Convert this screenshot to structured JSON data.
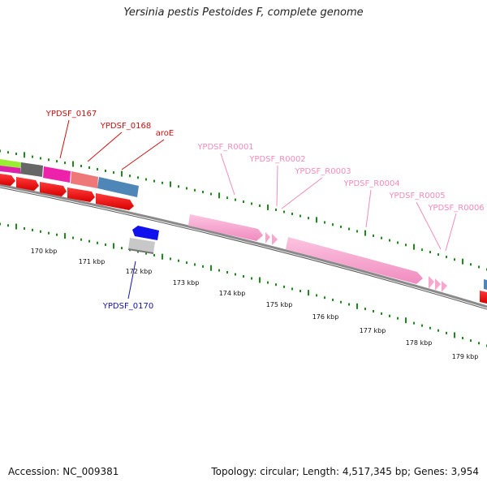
{
  "title": "Yersinia pestis Pestoides F, complete genome",
  "accession": {
    "label": "Accession:",
    "value": "NC_009381"
  },
  "stats": {
    "topology_label": "Topology:",
    "topology": "circular",
    "length_label": "Length:",
    "length": "4,517,345 bp",
    "genes_label": "Genes:",
    "genes": "3,954"
  },
  "colors": {
    "tick": "#1e8a1e",
    "backbone": "#8a8a8a",
    "red_gene": "#ee1111",
    "rna": "#f7a6cd",
    "blue_gene": "#1111ee",
    "blue_label": "#1414b4",
    "red_label": "#cc1111",
    "pink_label": "#f08cbe"
  },
  "scale_labels": [
    "170 kbp",
    "171 kbp",
    "172 kbp",
    "173 kbp",
    "174 kbp",
    "175 kbp",
    "176 kbp",
    "177 kbp",
    "178 kbp",
    "179 kbp"
  ],
  "gene_labels": [
    {
      "id": "g0167",
      "text": "YPDSF_0167",
      "color": "red_label"
    },
    {
      "id": "g0168",
      "text": "YPDSF_0168",
      "color": "red_label"
    },
    {
      "id": "garoE",
      "text": "aroE",
      "color": "red_label"
    },
    {
      "id": "r0001",
      "text": "YPDSF_R0001",
      "color": "pink_label"
    },
    {
      "id": "r0002",
      "text": "YPDSF_R0002",
      "color": "pink_label"
    },
    {
      "id": "r0003",
      "text": "YPDSF_R0003",
      "color": "pink_label"
    },
    {
      "id": "r0004",
      "text": "YPDSF_R0004",
      "color": "pink_label"
    },
    {
      "id": "r0005",
      "text": "YPDSF_R0005",
      "color": "pink_label"
    },
    {
      "id": "r0006",
      "text": "YPDSF_R0006",
      "color": "pink_label"
    },
    {
      "id": "g0170",
      "text": "YPDSF_0170",
      "color": "blue_label"
    }
  ]
}
